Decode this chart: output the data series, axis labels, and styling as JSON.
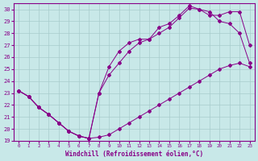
{
  "xlabel": "Windchill (Refroidissement éolien,°C)",
  "bg_color": "#c8e8e8",
  "line_color": "#880088",
  "grid_color": "#a8cccc",
  "xlim": [
    -0.5,
    23.5
  ],
  "ylim": [
    19,
    30.5
  ],
  "xticks": [
    0,
    1,
    2,
    3,
    4,
    5,
    6,
    7,
    8,
    9,
    10,
    11,
    12,
    13,
    14,
    15,
    16,
    17,
    18,
    19,
    20,
    21,
    22,
    23
  ],
  "yticks": [
    19,
    20,
    21,
    22,
    23,
    24,
    25,
    26,
    27,
    28,
    29,
    30
  ],
  "series1_x": [
    0,
    1,
    2,
    3,
    4,
    5,
    6,
    7,
    8,
    9,
    10,
    11,
    12,
    13,
    14,
    15,
    16,
    17,
    18,
    19,
    20,
    21,
    22,
    23
  ],
  "series1_y": [
    23.2,
    22.7,
    21.8,
    21.2,
    20.5,
    19.8,
    19.4,
    19.2,
    19.3,
    19.5,
    20.0,
    20.5,
    21.0,
    21.5,
    22.0,
    22.5,
    23.0,
    23.5,
    24.0,
    24.5,
    25.0,
    25.3,
    25.5,
    25.2
  ],
  "series2_x": [
    0,
    1,
    2,
    3,
    4,
    5,
    6,
    7,
    8,
    9,
    10,
    11,
    12,
    13,
    14,
    15,
    16,
    17,
    18,
    19,
    20,
    21,
    22,
    23
  ],
  "series2_y": [
    23.2,
    22.7,
    21.8,
    21.2,
    20.5,
    19.8,
    19.4,
    19.2,
    23.0,
    25.2,
    26.5,
    27.2,
    27.5,
    27.5,
    28.5,
    28.8,
    29.5,
    30.3,
    30.0,
    29.8,
    29.0,
    28.8,
    28.0,
    25.5
  ],
  "series3_x": [
    0,
    1,
    2,
    3,
    4,
    5,
    6,
    7,
    8,
    9,
    10,
    11,
    12,
    13,
    14,
    15,
    16,
    17,
    18,
    19,
    20,
    21,
    22,
    23
  ],
  "series3_y": [
    23.2,
    22.7,
    21.8,
    21.2,
    20.5,
    19.8,
    19.4,
    19.2,
    23.0,
    24.5,
    25.5,
    26.5,
    27.2,
    27.5,
    28.0,
    28.5,
    29.3,
    30.1,
    30.0,
    29.5,
    29.5,
    29.8,
    29.8,
    27.0
  ]
}
